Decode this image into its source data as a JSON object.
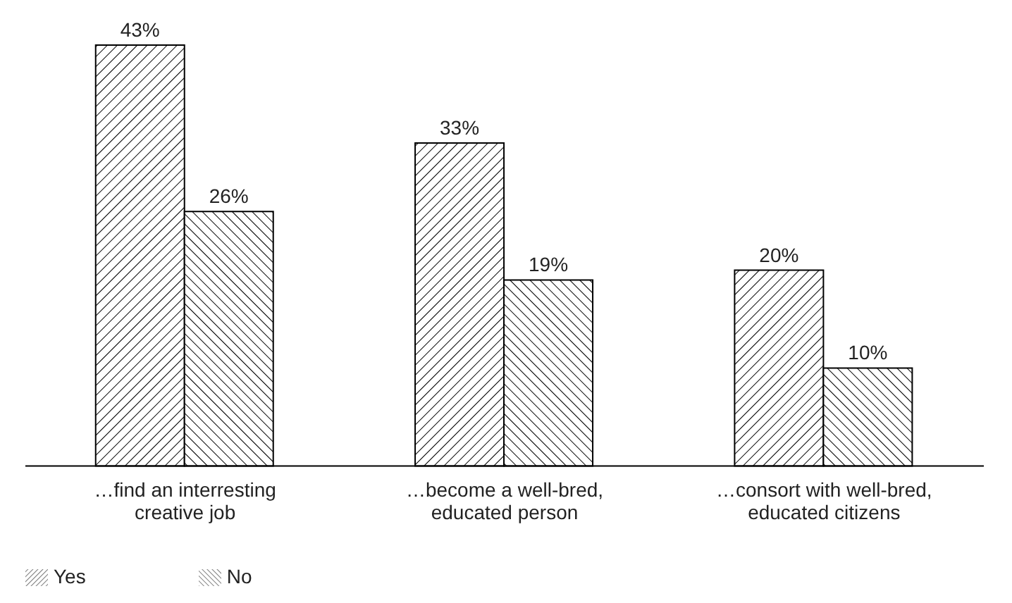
{
  "chart_data": {
    "type": "bar",
    "categories": [
      "…find an interresting creative job",
      "…become a well-bred, educated person",
      "…consort with well-bred, educated citizens"
    ],
    "series": [
      {
        "name": "Yes",
        "color": "#000000",
        "values": [
          43,
          33,
          20
        ],
        "value_labels": [
          "43%",
          "33%",
          "20%"
        ]
      },
      {
        "name": "No",
        "color": "#000000",
        "values": [
          26,
          19,
          10
        ],
        "value_labels": [
          "26%",
          "19%",
          "10%"
        ]
      }
    ],
    "legend": "bottom left",
    "grid": false,
    "tick_labels": "x"
  }
}
